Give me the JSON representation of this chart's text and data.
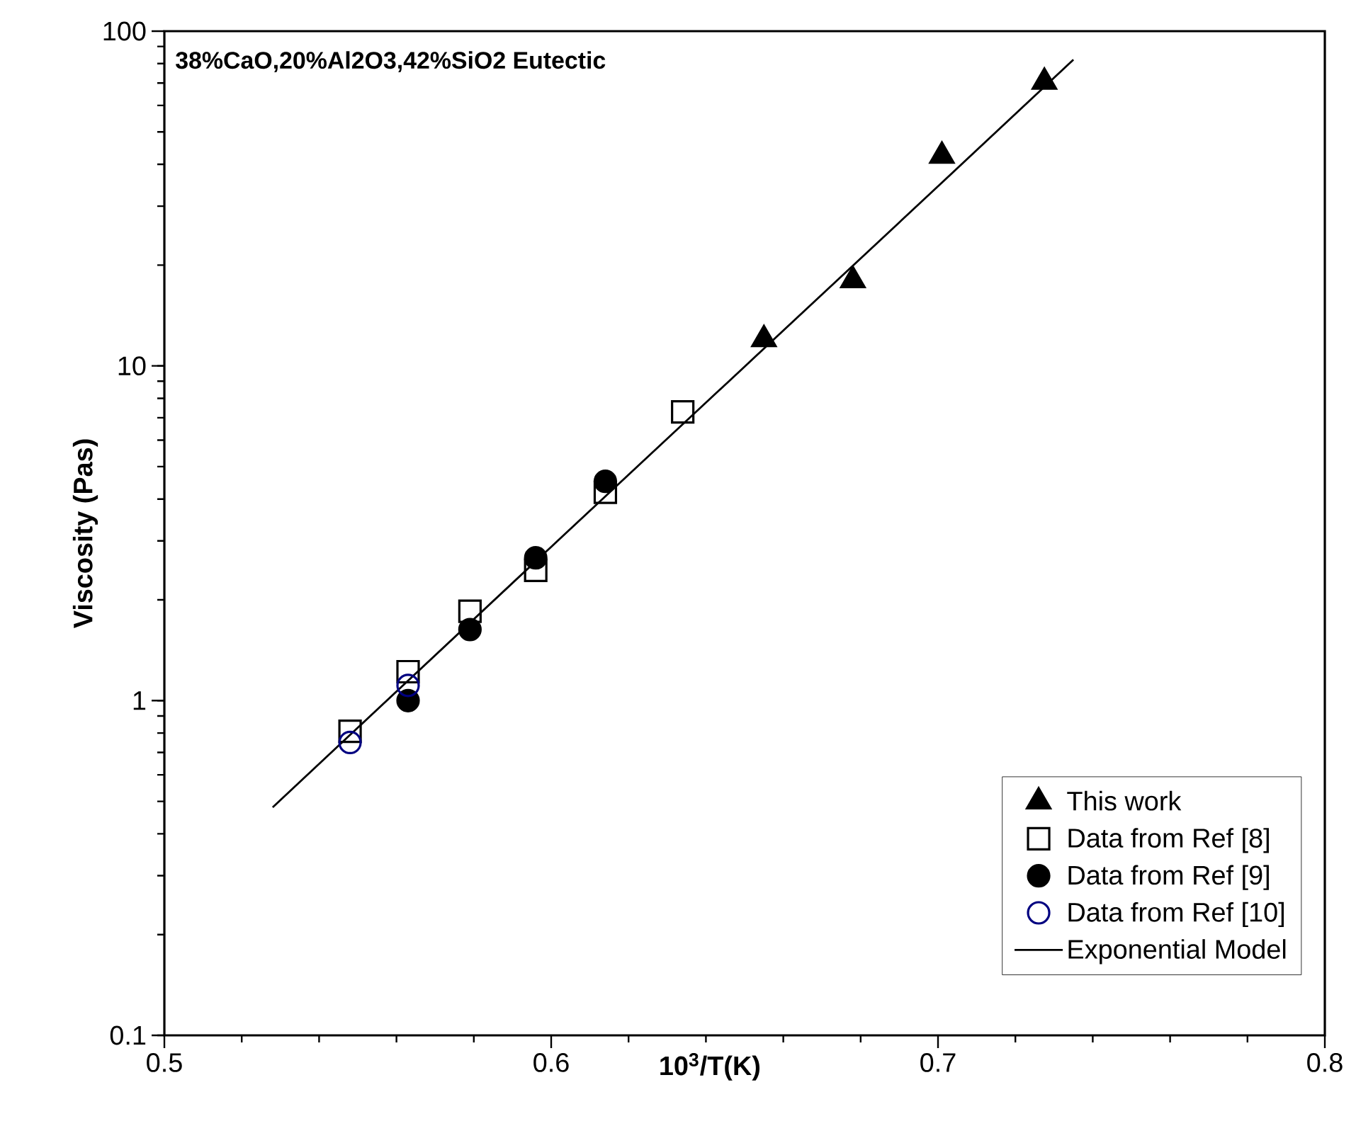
{
  "chart_data": {
    "type": "scatter",
    "title": "38%CaO,20%Al2O3,42%SiO2 Eutectic",
    "xlabel": "10$^{3}$/T(K)",
    "ylabel": "Viscosity (Pas)",
    "xlim": [
      0.5,
      0.8
    ],
    "xticks": [
      0.5,
      0.6,
      0.7,
      0.8
    ],
    "ylim": [
      0.1,
      100
    ],
    "yticks": [
      0.1,
      1,
      10,
      100
    ],
    "log": "y",
    "grid": false,
    "legend": "bottom right",
    "series": [
      {
        "name": "This work",
        "marker": "triangle",
        "color": "#000000",
        "x": [
          0.655,
          0.678,
          0.701,
          0.7275
        ],
        "values": [
          12.0,
          18.0,
          42.4,
          70.5
        ]
      },
      {
        "name": "Data from Ref [8]",
        "marker": "square",
        "color": "#000000",
        "x": [
          0.548,
          0.563,
          0.579,
          0.596,
          0.614,
          0.634
        ],
        "values": [
          0.81,
          1.22,
          1.85,
          2.45,
          4.19,
          7.29
        ]
      },
      {
        "name": "Data from Ref [9]",
        "marker": "circle",
        "color": "#000000",
        "x": [
          0.563,
          0.579,
          0.596,
          0.614
        ],
        "values": [
          1.0,
          1.63,
          2.67,
          4.52
        ]
      },
      {
        "name": "Data from Ref [10]",
        "marker": "circle",
        "color": "#000080",
        "x": [
          0.548,
          0.563
        ],
        "values": [
          0.75,
          1.11
        ]
      },
      {
        "name": "Exponential Model",
        "type": "line",
        "marker": "none",
        "line_style": "solid",
        "color": "#000000",
        "x": [
          0.528,
          0.55,
          0.6,
          0.65,
          0.7,
          0.735
        ],
        "values": [
          0.48,
          0.83,
          2.88,
          9.95,
          34.4,
          82.2
        ]
      }
    ]
  }
}
